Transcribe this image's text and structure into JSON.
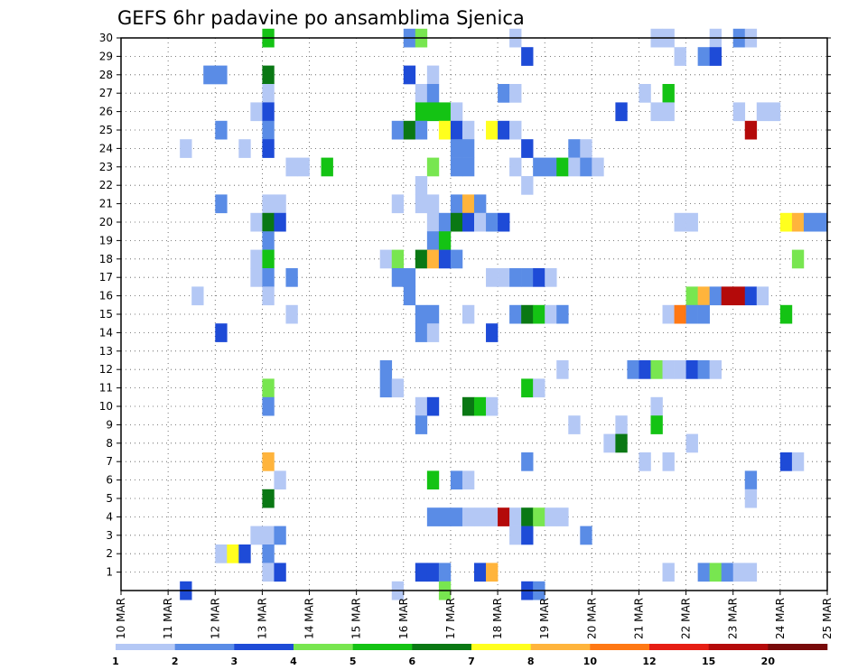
{
  "chart_data": {
    "type": "heatmap",
    "title": "GEFS 6hr padavine po ansamblima Sjenica",
    "xlabel": "",
    "ylabel": "",
    "x_tick_labels": [
      "10 MAR",
      "11 MAR",
      "12 MAR",
      "13 MAR",
      "14 MAR",
      "15 MAR",
      "16 MAR",
      "17 MAR",
      "18 MAR",
      "19 MAR",
      "20 MAR",
      "21 MAR",
      "22 MAR",
      "23 MAR",
      "24 MAR",
      "25 MAR"
    ],
    "x_range_days": [
      10,
      25
    ],
    "y_tick_labels": [
      "1",
      "2",
      "3",
      "4",
      "5",
      "6",
      "7",
      "8",
      "9",
      "10",
      "11",
      "12",
      "13",
      "14",
      "15",
      "16",
      "17",
      "18",
      "19",
      "20",
      "21",
      "22",
      "23",
      "24",
      "25",
      "26",
      "27",
      "28",
      "29",
      "30"
    ],
    "y_range": [
      0,
      30
    ],
    "grid": true,
    "legend_placement": "bottom",
    "legend_labels": [
      "1",
      "2",
      "3",
      "4",
      "5",
      "6",
      "7",
      "8",
      "10",
      "12",
      "15",
      "20"
    ],
    "legend_colors": [
      "#b4c8f5",
      "#5a8ce6",
      "#1e4bd7",
      "#78e650",
      "#14c314",
      "#0a7814",
      "#ffff1e",
      "#ffb43c",
      "#ff7814",
      "#e61e14",
      "#b40a0a",
      "#780a0a"
    ],
    "cells": [
      [
        13.0,
        30,
        4
      ],
      [
        16.0,
        30,
        1
      ],
      [
        16.25,
        30,
        3
      ],
      [
        18.25,
        30,
        0
      ],
      [
        21.25,
        30,
        0
      ],
      [
        21.5,
        30,
        0
      ],
      [
        22.5,
        30,
        0
      ],
      [
        23.0,
        30,
        1
      ],
      [
        23.25,
        30,
        0
      ],
      [
        18.5,
        29,
        2
      ],
      [
        21.75,
        29,
        0
      ],
      [
        22.25,
        29,
        1
      ],
      [
        22.5,
        29,
        2
      ],
      [
        11.75,
        28,
        1
      ],
      [
        12.0,
        28,
        1
      ],
      [
        13.0,
        28,
        5
      ],
      [
        16.0,
        28,
        2
      ],
      [
        16.5,
        28,
        0
      ],
      [
        13.0,
        27,
        0
      ],
      [
        16.25,
        27,
        0
      ],
      [
        16.5,
        27,
        1
      ],
      [
        18.0,
        27,
        1
      ],
      [
        18.25,
        27,
        0
      ],
      [
        21.0,
        27,
        0
      ],
      [
        21.5,
        27,
        4
      ],
      [
        12.75,
        26,
        0
      ],
      [
        13.0,
        26,
        2
      ],
      [
        16.25,
        26,
        4
      ],
      [
        16.5,
        26,
        4
      ],
      [
        16.75,
        26,
        4
      ],
      [
        17.0,
        26,
        0
      ],
      [
        20.5,
        26,
        2
      ],
      [
        21.25,
        26,
        0
      ],
      [
        21.5,
        26,
        0
      ],
      [
        23.0,
        26,
        0
      ],
      [
        23.5,
        26,
        0
      ],
      [
        23.75,
        26,
        0
      ],
      [
        12.0,
        25,
        1
      ],
      [
        13.0,
        25,
        1
      ],
      [
        15.75,
        25,
        1
      ],
      [
        16.0,
        25,
        5
      ],
      [
        16.25,
        25,
        1
      ],
      [
        16.75,
        25,
        6
      ],
      [
        17.0,
        25,
        2
      ],
      [
        17.25,
        25,
        0
      ],
      [
        17.75,
        25,
        6
      ],
      [
        18.0,
        25,
        2
      ],
      [
        18.25,
        25,
        0
      ],
      [
        23.25,
        25,
        10
      ],
      [
        11.25,
        24,
        0
      ],
      [
        12.5,
        24,
        0
      ],
      [
        13.0,
        24,
        2
      ],
      [
        17.0,
        24,
        1
      ],
      [
        17.25,
        24,
        1
      ],
      [
        18.5,
        24,
        2
      ],
      [
        19.5,
        24,
        1
      ],
      [
        19.75,
        24,
        0
      ],
      [
        13.5,
        23,
        0
      ],
      [
        13.75,
        23,
        0
      ],
      [
        14.25,
        23,
        4
      ],
      [
        16.5,
        23,
        3
      ],
      [
        17.0,
        23,
        1
      ],
      [
        17.25,
        23,
        1
      ],
      [
        18.25,
        23,
        0
      ],
      [
        18.75,
        23,
        1
      ],
      [
        19.0,
        23,
        1
      ],
      [
        19.25,
        23,
        4
      ],
      [
        19.5,
        23,
        0
      ],
      [
        19.75,
        23,
        1
      ],
      [
        20.0,
        23,
        0
      ],
      [
        16.25,
        22,
        0
      ],
      [
        18.5,
        22,
        0
      ],
      [
        12.0,
        21,
        1
      ],
      [
        13.0,
        21,
        0
      ],
      [
        13.25,
        21,
        0
      ],
      [
        15.75,
        21,
        0
      ],
      [
        16.25,
        21,
        0
      ],
      [
        16.5,
        21,
        0
      ],
      [
        17.0,
        21,
        1
      ],
      [
        17.25,
        21,
        7
      ],
      [
        17.5,
        21,
        1
      ],
      [
        12.75,
        20,
        0
      ],
      [
        13.0,
        20,
        5
      ],
      [
        13.25,
        20,
        2
      ],
      [
        16.5,
        20,
        0
      ],
      [
        16.75,
        20,
        1
      ],
      [
        17.0,
        20,
        5
      ],
      [
        17.25,
        20,
        2
      ],
      [
        17.5,
        20,
        0
      ],
      [
        17.75,
        20,
        1
      ],
      [
        18.0,
        20,
        2
      ],
      [
        21.75,
        20,
        0
      ],
      [
        22.0,
        20,
        0
      ],
      [
        24.0,
        20,
        6
      ],
      [
        24.25,
        20,
        7
      ],
      [
        24.5,
        20,
        1
      ],
      [
        24.75,
        20,
        1
      ],
      [
        13.0,
        19,
        1
      ],
      [
        16.5,
        19,
        1
      ],
      [
        16.75,
        19,
        4
      ],
      [
        12.75,
        18,
        0
      ],
      [
        13.0,
        18,
        4
      ],
      [
        15.5,
        18,
        0
      ],
      [
        15.75,
        18,
        3
      ],
      [
        16.25,
        18,
        5
      ],
      [
        16.5,
        18,
        7
      ],
      [
        16.75,
        18,
        2
      ],
      [
        17.0,
        18,
        1
      ],
      [
        24.25,
        18,
        3
      ],
      [
        12.75,
        17,
        0
      ],
      [
        13.0,
        17,
        1
      ],
      [
        13.5,
        17,
        1
      ],
      [
        15.75,
        17,
        1
      ],
      [
        16.0,
        17,
        1
      ],
      [
        17.75,
        17,
        0
      ],
      [
        18.0,
        17,
        0
      ],
      [
        18.25,
        17,
        1
      ],
      [
        18.5,
        17,
        1
      ],
      [
        18.75,
        17,
        2
      ],
      [
        19.0,
        17,
        0
      ],
      [
        11.5,
        16,
        0
      ],
      [
        13.0,
        16,
        0
      ],
      [
        16.0,
        16,
        1
      ],
      [
        22.0,
        16,
        3
      ],
      [
        22.25,
        16,
        7
      ],
      [
        22.5,
        16,
        1
      ],
      [
        22.75,
        16,
        10
      ],
      [
        23.0,
        16,
        10
      ],
      [
        23.25,
        16,
        2
      ],
      [
        23.5,
        16,
        0
      ],
      [
        13.5,
        15,
        0
      ],
      [
        16.25,
        15,
        1
      ],
      [
        16.5,
        15,
        1
      ],
      [
        17.25,
        15,
        0
      ],
      [
        18.25,
        15,
        1
      ],
      [
        18.5,
        15,
        5
      ],
      [
        18.75,
        15,
        4
      ],
      [
        19.0,
        15,
        0
      ],
      [
        19.25,
        15,
        1
      ],
      [
        21.5,
        15,
        0
      ],
      [
        21.75,
        15,
        8
      ],
      [
        22.0,
        15,
        1
      ],
      [
        22.25,
        15,
        1
      ],
      [
        24.0,
        15,
        4
      ],
      [
        12.0,
        14,
        2
      ],
      [
        16.25,
        14,
        1
      ],
      [
        16.5,
        14,
        0
      ],
      [
        17.75,
        14,
        2
      ],
      [
        15.5,
        12,
        1
      ],
      [
        19.25,
        12,
        0
      ],
      [
        20.75,
        12,
        1
      ],
      [
        21.0,
        12,
        2
      ],
      [
        21.25,
        12,
        3
      ],
      [
        21.5,
        12,
        0
      ],
      [
        21.75,
        12,
        0
      ],
      [
        22.0,
        12,
        2
      ],
      [
        22.25,
        12,
        1
      ],
      [
        22.5,
        12,
        0
      ],
      [
        13.0,
        11,
        3
      ],
      [
        15.5,
        11,
        1
      ],
      [
        15.75,
        11,
        0
      ],
      [
        18.5,
        11,
        4
      ],
      [
        18.75,
        11,
        0
      ],
      [
        13.0,
        10,
        1
      ],
      [
        16.25,
        10,
        0
      ],
      [
        16.5,
        10,
        2
      ],
      [
        17.25,
        10,
        5
      ],
      [
        17.5,
        10,
        4
      ],
      [
        17.75,
        10,
        0
      ],
      [
        21.25,
        10,
        0
      ],
      [
        16.25,
        9,
        1
      ],
      [
        19.5,
        9,
        0
      ],
      [
        20.5,
        9,
        0
      ],
      [
        21.25,
        9,
        4
      ],
      [
        20.25,
        8,
        0
      ],
      [
        20.5,
        8,
        5
      ],
      [
        22.0,
        8,
        0
      ],
      [
        13.0,
        7,
        7
      ],
      [
        18.5,
        7,
        1
      ],
      [
        21.0,
        7,
        0
      ],
      [
        21.5,
        7,
        0
      ],
      [
        24.0,
        7,
        2
      ],
      [
        24.25,
        7,
        0
      ],
      [
        13.25,
        6,
        0
      ],
      [
        16.5,
        6,
        4
      ],
      [
        17.0,
        6,
        1
      ],
      [
        17.25,
        6,
        0
      ],
      [
        23.25,
        6,
        1
      ],
      [
        13.0,
        5,
        5
      ],
      [
        23.25,
        5,
        0
      ],
      [
        16.5,
        4,
        1
      ],
      [
        16.75,
        4,
        1
      ],
      [
        17.0,
        4,
        1
      ],
      [
        17.25,
        4,
        0
      ],
      [
        17.5,
        4,
        0
      ],
      [
        17.75,
        4,
        0
      ],
      [
        18.0,
        4,
        10
      ],
      [
        18.25,
        4,
        0
      ],
      [
        18.5,
        4,
        5
      ],
      [
        18.75,
        4,
        3
      ],
      [
        19.0,
        4,
        0
      ],
      [
        19.25,
        4,
        0
      ],
      [
        12.75,
        3,
        0
      ],
      [
        13.0,
        3,
        0
      ],
      [
        13.25,
        3,
        1
      ],
      [
        18.25,
        3,
        0
      ],
      [
        18.5,
        3,
        2
      ],
      [
        19.75,
        3,
        1
      ],
      [
        12.0,
        2,
        0
      ],
      [
        12.25,
        2,
        6
      ],
      [
        12.5,
        2,
        2
      ],
      [
        13.0,
        2,
        1
      ],
      [
        13.0,
        1,
        0
      ],
      [
        13.25,
        1,
        2
      ],
      [
        16.25,
        1,
        2
      ],
      [
        16.5,
        1,
        2
      ],
      [
        16.75,
        1,
        1
      ],
      [
        17.5,
        1,
        2
      ],
      [
        17.75,
        1,
        7
      ],
      [
        21.5,
        1,
        0
      ],
      [
        22.25,
        1,
        1
      ],
      [
        22.5,
        1,
        3
      ],
      [
        22.75,
        1,
        1
      ],
      [
        23.0,
        1,
        0
      ],
      [
        23.25,
        1,
        0
      ],
      [
        11.25,
        0,
        2
      ],
      [
        15.75,
        0,
        0
      ],
      [
        16.75,
        0,
        3
      ],
      [
        18.5,
        0,
        2
      ],
      [
        18.75,
        0,
        1
      ]
    ]
  }
}
